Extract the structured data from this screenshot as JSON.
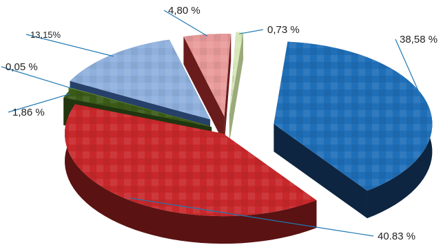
{
  "chart_data": {
    "type": "pie",
    "style": "3d-exploded",
    "title": "",
    "slices": [
      {
        "label": "38,58 %",
        "value": 38.58,
        "color": "#1f6fb8",
        "side": "#0d2540"
      },
      {
        "label": "40.83 %",
        "value": 40.83,
        "color": "#c8282b",
        "side": "#5a1212"
      },
      {
        "label": "1,86 %",
        "value": 1.86,
        "color": "#3a5a17",
        "side": "#213510"
      },
      {
        "label": "0,05 %",
        "value": 0.05,
        "color": "#8fbf4a",
        "side": "#4f6f22"
      },
      {
        "label": "13,15%",
        "value": 13.15,
        "color": "#8fb0dd",
        "side": "#26406a"
      },
      {
        "label": "4,80 %",
        "value": 4.8,
        "color": "#e89a9a",
        "side": "#6a1c1c"
      },
      {
        "label": "0,73 %",
        "value": 0.73,
        "color": "#d7e6b8",
        "side": "#9aaa7a"
      }
    ],
    "legend": "none"
  }
}
